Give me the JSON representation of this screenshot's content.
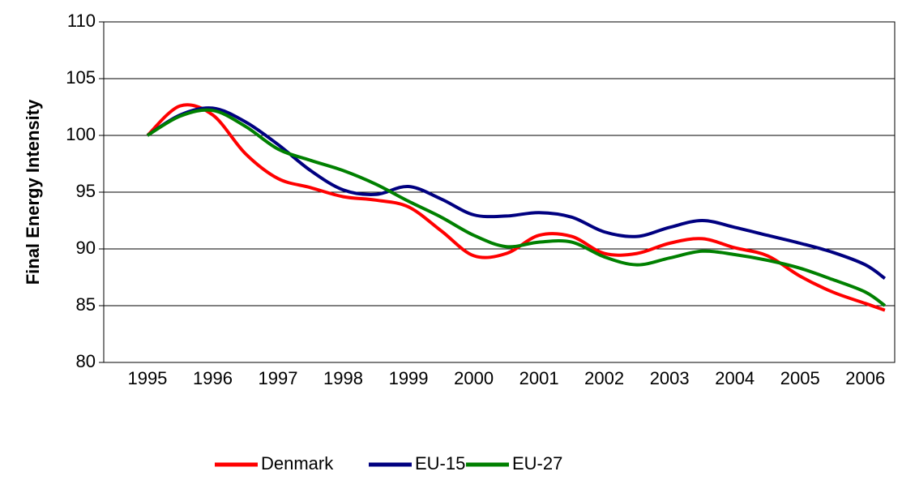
{
  "chart_data": {
    "type": "line",
    "y_label": "Final Energy Intensity",
    "x": [
      1995,
      1995.5,
      1996,
      1996.5,
      1997,
      1997.5,
      1998,
      1998.5,
      1999,
      1999.5,
      2000,
      2000.5,
      2001,
      2001.5,
      2002,
      2002.5,
      2003,
      2003.5,
      2004,
      2004.5,
      2005,
      2005.5,
      2006,
      2006.3
    ],
    "xlim": [
      1994.33,
      2006.45
    ],
    "xticks": [
      1995,
      1996,
      1997,
      1998,
      1999,
      2000,
      2001,
      2002,
      2003,
      2004,
      2005,
      2006
    ],
    "ylim": [
      80,
      110
    ],
    "yticks": [
      80,
      85,
      90,
      95,
      100,
      105,
      110
    ],
    "grid": true,
    "legend": "bottom",
    "series": [
      {
        "name": "Denmark",
        "color": "#ff0000",
        "values": [
          100,
          102.6,
          101.8,
          98.4,
          96.2,
          95.4,
          94.6,
          94.3,
          93.7,
          91.6,
          89.4,
          89.6,
          91.2,
          91.1,
          89.6,
          89.6,
          90.5,
          90.9,
          90.1,
          89.4,
          87.6,
          86.2,
          85.2,
          84.6
        ]
      },
      {
        "name": "EU-15",
        "color": "#000080",
        "values": [
          100,
          101.8,
          102.4,
          101.2,
          99.2,
          96.9,
          95.2,
          94.8,
          95.5,
          94.4,
          93.0,
          92.9,
          93.2,
          92.8,
          91.5,
          91.1,
          91.9,
          92.5,
          91.9,
          91.2,
          90.5,
          89.7,
          88.6,
          87.4
        ]
      },
      {
        "name": "EU-27",
        "color": "#008000",
        "values": [
          100,
          101.7,
          102.2,
          100.8,
          98.8,
          97.8,
          96.9,
          95.7,
          94.2,
          92.8,
          91.2,
          90.2,
          90.6,
          90.6,
          89.3,
          88.6,
          89.2,
          89.8,
          89.5,
          89.0,
          88.3,
          87.3,
          86.2,
          85.0
        ]
      }
    ]
  }
}
